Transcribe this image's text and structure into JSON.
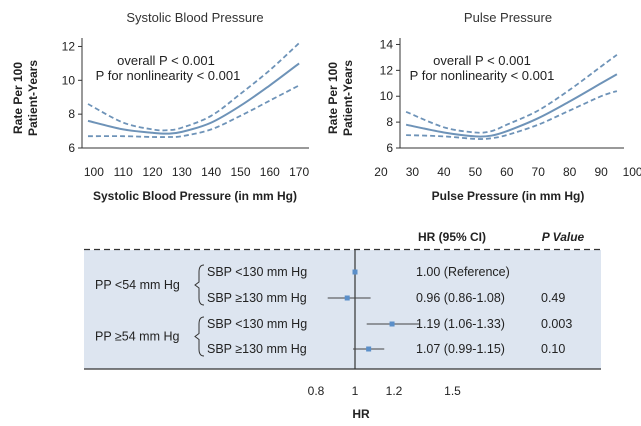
{
  "colors": {
    "line": "#6e93b8",
    "panel": "#dde5f0",
    "axis": "#333333",
    "point": "#5b8fc9"
  },
  "chart_data": [
    {
      "type": "line",
      "title": "Systolic Blood Pressure",
      "xlabel": "Systolic Blood Pressure (in mm Hg)",
      "ylabel_lines": [
        "Rate Per 100",
        "Patient-Years"
      ],
      "xlim": [
        98,
        172
      ],
      "ylim": [
        6,
        12.5
      ],
      "xticks": [
        100,
        110,
        120,
        130,
        140,
        150,
        160,
        170
      ],
      "yticks": [
        6,
        8,
        10,
        12
      ],
      "annotation_lines": [
        "overall P < 0.001",
        "P for nonlinearity < 0.001"
      ],
      "series": [
        {
          "name": "estimate",
          "style": "solid",
          "x": [
            98,
            110,
            120,
            125,
            130,
            140,
            150,
            160,
            170
          ],
          "y": [
            7.6,
            7.1,
            6.9,
            6.85,
            6.95,
            7.5,
            8.5,
            9.7,
            11.0
          ]
        },
        {
          "name": "upper 95% CI",
          "style": "dashed",
          "x": [
            98,
            110,
            120,
            125,
            130,
            140,
            150,
            160,
            170
          ],
          "y": [
            8.6,
            7.5,
            7.1,
            7.05,
            7.2,
            7.9,
            9.2,
            10.6,
            12.2
          ]
        },
        {
          "name": "lower 95% CI",
          "style": "dashed",
          "x": [
            98,
            110,
            120,
            125,
            130,
            140,
            150,
            160,
            170
          ],
          "y": [
            6.7,
            6.7,
            6.65,
            6.65,
            6.7,
            7.1,
            7.9,
            8.8,
            9.7
          ]
        }
      ]
    },
    {
      "type": "line",
      "title": "Pulse Pressure",
      "xlabel": "Pulse Pressure (in mm Hg)",
      "ylabel_lines": [
        "Rate Per 100",
        "Patient-Years"
      ],
      "xlim": [
        27,
        96
      ],
      "ylim": [
        6,
        14.5
      ],
      "xticks": [
        20,
        30,
        40,
        50,
        60,
        70,
        80,
        90,
        100
      ],
      "yticks": [
        6,
        8,
        10,
        12,
        14
      ],
      "annotation_lines": [
        "overall P < 0.001",
        "P for nonlinearity < 0.001"
      ],
      "series": [
        {
          "name": "estimate",
          "style": "solid",
          "x": [
            28,
            40,
            50,
            55,
            60,
            70,
            80,
            90,
            95
          ],
          "y": [
            7.8,
            7.2,
            6.9,
            6.95,
            7.3,
            8.3,
            9.6,
            11.0,
            11.7
          ]
        },
        {
          "name": "upper 95% CI",
          "style": "dashed",
          "x": [
            28,
            40,
            50,
            55,
            60,
            70,
            80,
            90,
            95
          ],
          "y": [
            8.8,
            7.6,
            7.2,
            7.3,
            7.8,
            8.9,
            10.5,
            12.3,
            13.2
          ]
        },
        {
          "name": "lower 95% CI",
          "style": "dashed",
          "x": [
            28,
            40,
            50,
            55,
            60,
            70,
            80,
            90,
            95
          ],
          "y": [
            7.0,
            6.9,
            6.7,
            6.75,
            7.0,
            7.8,
            8.9,
            10.0,
            10.4
          ]
        }
      ]
    },
    {
      "type": "forest",
      "header_hr": "HR (95% CI)",
      "header_p": "P Value",
      "xlabel": "HR",
      "xticks": [
        0.8,
        1,
        1.2,
        1.5
      ],
      "xlim": [
        0.62,
        1.7
      ],
      "reference": 1,
      "groups": [
        {
          "label": "PP <54 mm Hg",
          "rows": [
            {
              "label": "SBP <130 mm Hg",
              "hr": 1.0,
              "lo": 1.0,
              "hi": 1.0,
              "text": "1.00 (Reference)",
              "p": ""
            },
            {
              "label": "SBP ≥130 mm Hg",
              "hr": 0.96,
              "lo": 0.86,
              "hi": 1.08,
              "text": "0.96 (0.86-1.08)",
              "p": "0.49"
            }
          ]
        },
        {
          "label": "PP ≥54 mm Hg",
          "rows": [
            {
              "label": "SBP <130 mm Hg",
              "hr": 1.19,
              "lo": 1.06,
              "hi": 1.33,
              "text": "1.19 (1.06-1.33)",
              "p": "0.003"
            },
            {
              "label": "SBP ≥130 mm Hg",
              "hr": 1.07,
              "lo": 0.99,
              "hi": 1.15,
              "text": "1.07 (0.99-1.15)",
              "p": "0.10"
            }
          ]
        }
      ]
    }
  ]
}
